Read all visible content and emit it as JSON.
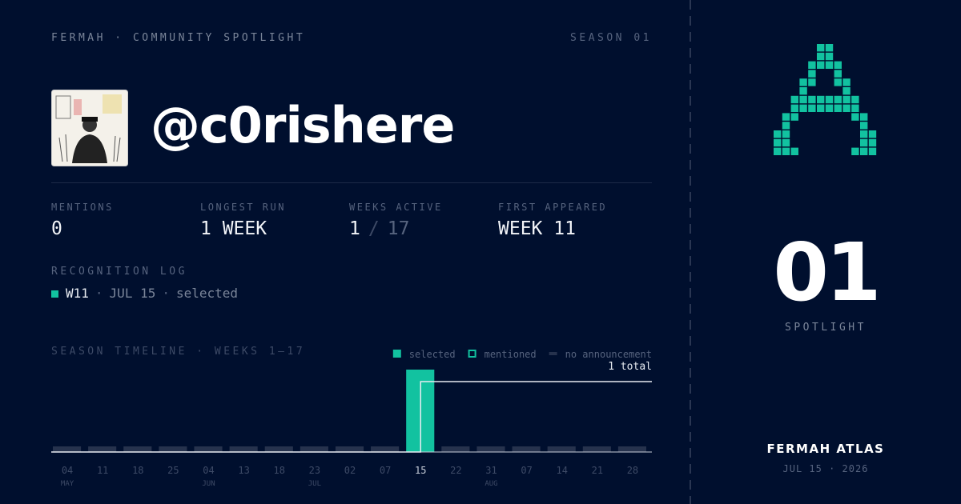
{
  "header": {
    "brand": "FERMAH · COMMUNITY SPOTLIGHT",
    "season": "SEASON 01"
  },
  "profile": {
    "handle": "@c0rishere"
  },
  "stats": [
    {
      "label": "MENTIONS",
      "value": "0"
    },
    {
      "label": "LONGEST RUN",
      "value": "1 WEEK"
    },
    {
      "label": "WEEKS ACTIVE",
      "value": "1",
      "separator": "/",
      "total": "17"
    },
    {
      "label": "FIRST APPEARED",
      "value": "WEEK 11"
    }
  ],
  "log": {
    "title": "RECOGNITION LOG",
    "separator": "·",
    "entries": [
      {
        "week": "W11",
        "date": "JUL 15",
        "status": "selected"
      }
    ]
  },
  "chart_data": {
    "type": "bar",
    "title": "SEASON TIMELINE · WEEKS 1–17",
    "legend": [
      {
        "name": "selected",
        "color": "#12c2a0"
      },
      {
        "name": "mentioned",
        "color": "#12c2a0"
      },
      {
        "name": "no announcement",
        "color": "#26324d"
      }
    ],
    "categories": [
      "04",
      "11",
      "18",
      "25",
      "04",
      "13",
      "18",
      "23",
      "02",
      "07",
      "15",
      "22",
      "31",
      "07",
      "14",
      "21",
      "28"
    ],
    "months": [
      "MAY",
      null,
      null,
      null,
      "JUN",
      null,
      null,
      "JUL",
      null,
      null,
      null,
      null,
      "AUG",
      null,
      null,
      null,
      null
    ],
    "values": [
      0,
      0,
      0,
      0,
      0,
      0,
      0,
      0,
      0,
      0,
      1,
      0,
      0,
      0,
      0,
      0,
      0
    ],
    "ylim": [
      0,
      1
    ],
    "total_label": "1 total",
    "line_color": "#e8ecf2"
  },
  "side": {
    "number": "01",
    "label": "SPOTLIGHT",
    "product": "FERMAH ATLAS",
    "date": "JUL 15 · 2026"
  }
}
